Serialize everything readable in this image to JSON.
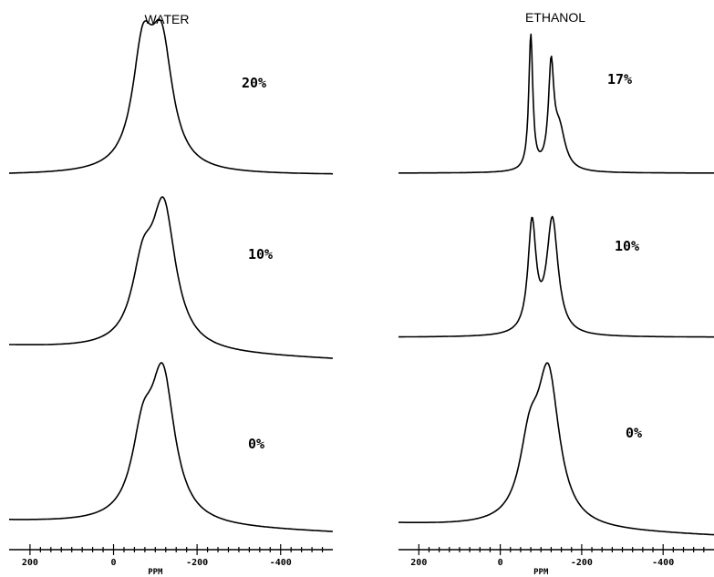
{
  "chart_data": [
    {
      "type": "line",
      "title": "WATER",
      "xlabel": "PPM",
      "xlim": [
        250,
        -525
      ],
      "x_reversed": true,
      "ticks": [
        200,
        0,
        -200,
        -400
      ],
      "tick_labels": [
        "200",
        "0",
        "-200",
        "-400"
      ],
      "series": [
        {
          "name": "20%",
          "peaks": [
            {
              "center": -70,
              "width": 30,
              "height": 0.82
            },
            {
              "center": -115,
              "width": 32,
              "height": 0.88
            }
          ],
          "baseline_offset": 0.0,
          "baseline_slope": 0.0
        },
        {
          "name": "10%",
          "peaks": [
            {
              "center": -70,
              "width": 32,
              "height": 0.48
            },
            {
              "center": -120,
              "width": 35,
              "height": 0.95
            }
          ],
          "baseline_offset": 0.0,
          "baseline_slope": -0.00012
        },
        {
          "name": "0%",
          "peaks": [
            {
              "center": -70,
              "width": 32,
              "height": 0.5
            },
            {
              "center": -118,
              "width": 35,
              "height": 0.95
            }
          ],
          "baseline_offset": 0.0,
          "baseline_slope": -0.0001
        }
      ]
    },
    {
      "type": "line",
      "title": "ETHANOL",
      "xlabel": "PPM",
      "xlim": [
        250,
        -525
      ],
      "x_reversed": true,
      "ticks": [
        200,
        0,
        -200,
        -400
      ],
      "tick_labels": [
        "200",
        "0",
        "-200",
        "-400"
      ],
      "series": [
        {
          "name": "17%",
          "peaks": [
            {
              "center": -75,
              "width": 6,
              "height": 1.0
            },
            {
              "center": -125,
              "width": 8,
              "height": 0.72
            },
            {
              "center": -145,
              "width": 18,
              "height": 0.3
            }
          ],
          "baseline_offset": 0.0,
          "baseline_slope": 0.0
        },
        {
          "name": "10%",
          "peaks": [
            {
              "center": -78,
              "width": 12,
              "height": 0.85
            },
            {
              "center": -128,
              "width": 17,
              "height": 0.9
            }
          ],
          "baseline_offset": 0.0,
          "baseline_slope": 0.0
        },
        {
          "name": "0%",
          "peaks": [
            {
              "center": -72,
              "width": 30,
              "height": 0.45
            },
            {
              "center": -118,
              "width": 33,
              "height": 0.95
            }
          ],
          "baseline_offset": 0.0,
          "baseline_slope": -0.0001
        }
      ]
    }
  ]
}
